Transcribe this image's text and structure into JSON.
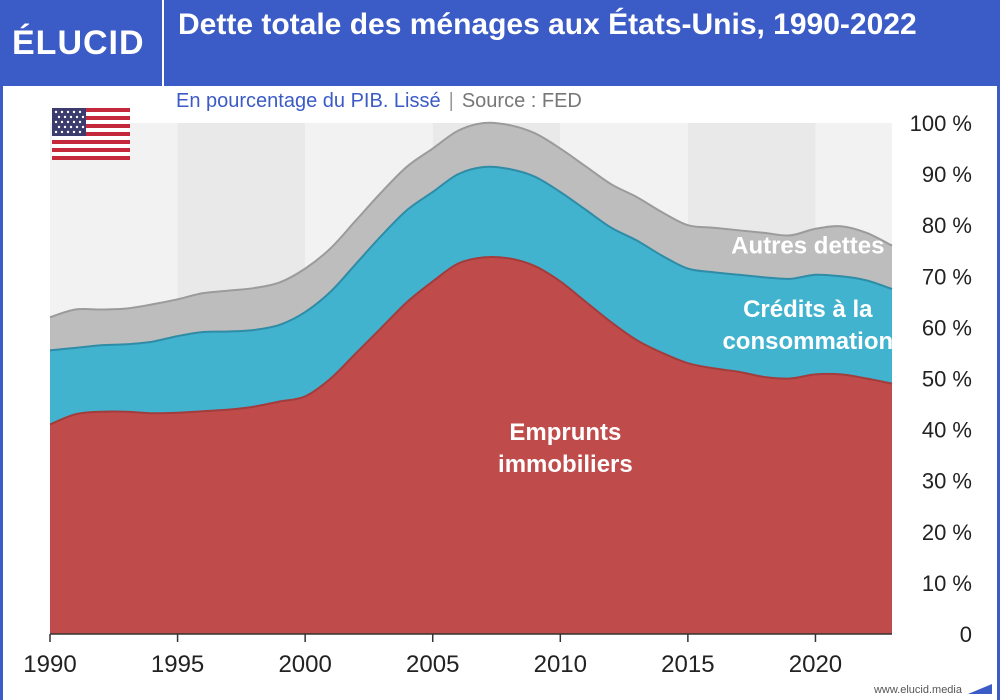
{
  "header": {
    "logo": "ÉLUCID",
    "title": "Dette totale des ménages aux États-Unis, 1990-2022",
    "subtitle": "En pourcentage du PIB. Lissé",
    "separator": "|",
    "source": "Source : FED"
  },
  "footer": {
    "url": "www.elucid.media"
  },
  "colors": {
    "brand": "#3b5bc6",
    "mortgage": "#c04b4b",
    "consumer": "#41b3cf",
    "other": "#bdbdbd",
    "band_light": "#f2f2f2",
    "band_dark": "#e9e9e9"
  },
  "chart_data": {
    "type": "area",
    "stacked": true,
    "x": [
      1990,
      1991,
      1992,
      1993,
      1994,
      1995,
      1996,
      1997,
      1998,
      1999,
      2000,
      2001,
      2002,
      2003,
      2004,
      2005,
      2006,
      2007,
      2008,
      2009,
      2010,
      2011,
      2012,
      2013,
      2014,
      2015,
      2016,
      2017,
      2018,
      2019,
      2020,
      2021,
      2022,
      2023
    ],
    "xticks": [
      "1990",
      "1995",
      "2000",
      "2005",
      "2010",
      "2015",
      "2020"
    ],
    "xtick_values": [
      1990,
      1995,
      2000,
      2005,
      2010,
      2015,
      2020
    ],
    "xlim": [
      1990,
      2023
    ],
    "ylim": [
      0,
      100
    ],
    "yticks": [
      "0",
      "10 %",
      "20 %",
      "30 %",
      "40 %",
      "50 %",
      "60 %",
      "70 %",
      "80 %",
      "90 %",
      "100 %"
    ],
    "ytick_values": [
      0,
      10,
      20,
      30,
      40,
      50,
      60,
      70,
      80,
      90,
      100
    ],
    "series": [
      {
        "name": "Emprunts immobiliers",
        "values": [
          41,
          43,
          43.5,
          43.5,
          43.2,
          43.3,
          43.6,
          43.9,
          44.5,
          45.5,
          46.5,
          50,
          55,
          60,
          65,
          69,
          72.5,
          73.7,
          73.5,
          72,
          69,
          65,
          61,
          57.5,
          55,
          53,
          52,
          51.3,
          50.3,
          50,
          50.8,
          50.8,
          50,
          49
        ]
      },
      {
        "name": "Crédits à la consommation",
        "values": [
          14.5,
          13,
          13,
          13.2,
          14,
          15,
          15.5,
          15.3,
          15,
          15,
          16.5,
          17,
          17.5,
          18,
          18,
          17.5,
          17.5,
          17.7,
          17.5,
          17.5,
          17.5,
          18,
          18.5,
          19.5,
          19,
          18.5,
          18.8,
          19,
          19.5,
          19.5,
          19.5,
          19.2,
          19.2,
          18.5
        ]
      },
      {
        "name": "Autres dettes",
        "values": [
          6.5,
          7.5,
          7,
          7,
          7.3,
          7.2,
          7.6,
          8,
          8.2,
          8.3,
          8.5,
          8.5,
          8.5,
          8.5,
          8.5,
          8.5,
          8.5,
          8.6,
          8.6,
          8.5,
          8.5,
          8.5,
          8.5,
          8.5,
          8.5,
          8.5,
          8.7,
          8.7,
          8.7,
          8.5,
          9,
          9.8,
          9.3,
          8.5
        ]
      }
    ],
    "labels": [
      {
        "text": [
          "Emprunts",
          "immobiliers"
        ],
        "x": 2010.2,
        "y": 38,
        "series": 0
      },
      {
        "text": [
          "Crédits à la",
          "consommation"
        ],
        "x": 2019.7,
        "y": 62,
        "series": 1
      },
      {
        "text": [
          "Autres dettes"
        ],
        "x": 2019.7,
        "y": 74.5,
        "series": 2
      }
    ]
  }
}
